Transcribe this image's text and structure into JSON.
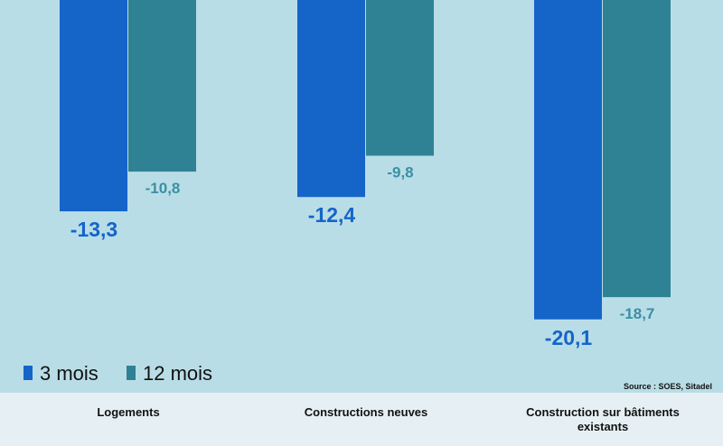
{
  "chart_data": {
    "type": "bar",
    "categories": [
      [
        "Logements"
      ],
      [
        "Constructions neuves"
      ],
      [
        "Construction sur bâtiments",
        "existants"
      ]
    ],
    "series": [
      {
        "name": "3 mois",
        "values": [
          -13.3,
          -12.4,
          -20.1
        ],
        "labels": [
          "-13,3",
          "-12,4",
          "-20,1"
        ],
        "color": "#1565c8"
      },
      {
        "name": "12 mois",
        "values": [
          -10.8,
          -9.8,
          -18.7
        ],
        "labels": [
          "-10,8",
          "-9,8",
          "-18,7"
        ],
        "color": "#2e8294"
      }
    ],
    "ylim": [
      -24,
      0
    ],
    "legend": "bottom-left",
    "source": "Source : SOES,  Sitadel",
    "colors": {
      "plot_background": "#b9dde7",
      "page_background": "#e6f0f4",
      "label_3_mois": "#1565c8",
      "label_12_mois": "#3a90a3"
    }
  }
}
